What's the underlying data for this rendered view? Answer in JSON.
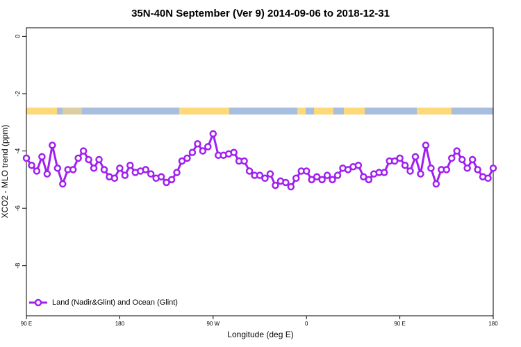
{
  "chart_data": {
    "type": "line",
    "title": "35N-40N September (Ver 9)   2014-09-06 to 2018-12-31",
    "xlabel": "Longitude (deg E)",
    "ylabel": "XCO2 - MLO trend (ppm)",
    "x": [
      90,
      95,
      100,
      105,
      110,
      115,
      120,
      125,
      130,
      135,
      140,
      145,
      150,
      155,
      160,
      165,
      170,
      175,
      180,
      185,
      190,
      195,
      200,
      205,
      210,
      215,
      220,
      225,
      230,
      235,
      240,
      245,
      250,
      255,
      260,
      265,
      270,
      275,
      280,
      285,
      290,
      295,
      300,
      305,
      310,
      315,
      320,
      325,
      330,
      335,
      340,
      345,
      350,
      355,
      360,
      365,
      370,
      375,
      380,
      385,
      390,
      395,
      400,
      405,
      410,
      415,
      420,
      425,
      430,
      435,
      440,
      445,
      450,
      455,
      460,
      465,
      470,
      475,
      480,
      485,
      490,
      495,
      500,
      505,
      510,
      515,
      520,
      525,
      530,
      535,
      540
    ],
    "series": [
      {
        "name": "Land (Nadir&Glint) and Ocean (Glint)",
        "color": "#a020f0",
        "values": [
          -4.25,
          -4.5,
          -4.7,
          -4.2,
          -4.8,
          -3.8,
          -4.6,
          -5.15,
          -4.65,
          -4.65,
          -4.25,
          -4.0,
          -4.3,
          -4.6,
          -4.3,
          -4.65,
          -4.9,
          -4.95,
          -4.6,
          -4.85,
          -4.5,
          -4.75,
          -4.7,
          -4.65,
          -4.8,
          -4.95,
          -4.9,
          -5.1,
          -5.0,
          -4.75,
          -4.35,
          -4.25,
          -4.05,
          -3.75,
          -4.0,
          -3.85,
          -3.4,
          -4.15,
          -4.15,
          -4.1,
          -4.05,
          -4.35,
          -4.35,
          -4.7,
          -4.85,
          -4.85,
          -4.95,
          -4.8,
          -5.2,
          -5.05,
          -5.1,
          -5.25,
          -4.95,
          -4.7,
          -4.7,
          -5.0,
          -4.9,
          -5.0,
          -4.85,
          -5.0,
          -4.85,
          -4.6,
          -4.65,
          -4.55,
          -4.5,
          -4.9,
          -5.0,
          -4.8,
          -4.75,
          -4.75,
          -4.35,
          -4.35,
          -4.25,
          -4.5,
          -4.7,
          -4.2,
          -4.8,
          -3.8,
          -4.6,
          -5.15,
          -4.65,
          -4.65,
          -4.25,
          -4.0,
          -4.3,
          -4.6,
          -4.3,
          -4.65,
          -4.9,
          -4.95,
          -4.6
        ]
      }
    ],
    "xlim": [
      90,
      540
    ],
    "xticks": [
      {
        "value": 90,
        "label": "90 E"
      },
      180,
      {
        "value": 270,
        "label": "90 W"
      },
      {
        "value": 360,
        "label": "0"
      },
      {
        "value": 450,
        "label": "90 E"
      },
      {
        "value": 540,
        "label": "180"
      }
    ],
    "ylim": [
      -9.75,
      0.3
    ],
    "yticks": [
      0,
      -2,
      -4,
      -6,
      -8
    ],
    "legend": "bottom-left"
  }
}
